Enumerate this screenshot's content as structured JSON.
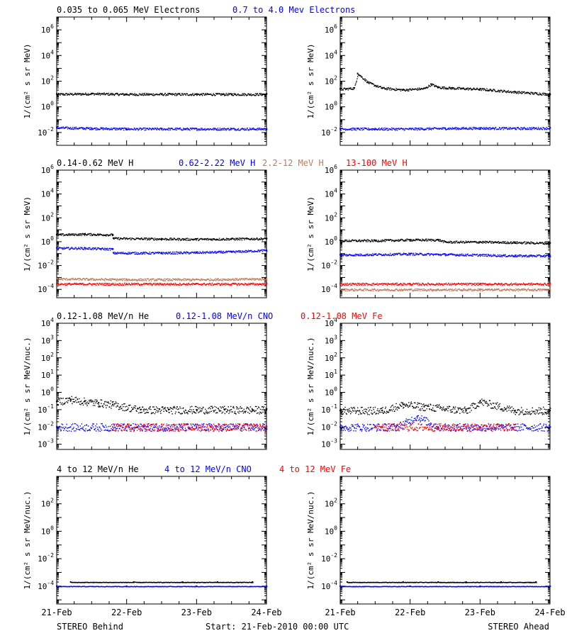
{
  "colors": {
    "black": "#000000",
    "blue": "#0000ff",
    "tan": "#c0785a",
    "red": "#ff0000"
  },
  "chart_data": [
    {
      "type": "scatter",
      "panel": "electrons-behind",
      "log_y": true,
      "ylim": [
        0.001,
        10000000
      ],
      "ylabel": "1/(cm² s sr MeV)",
      "yticks": [
        "10^-2",
        "10^0",
        "10^2",
        "10^4",
        "10^6"
      ],
      "series": [
        {
          "name": "0.035 to 0.065 MeV Electrons",
          "color": "#000000",
          "x": [
            0,
            0.5,
            1,
            1.5,
            2,
            2.5,
            3
          ],
          "y": [
            10,
            11,
            10,
            10,
            10,
            10,
            10
          ]
        },
        {
          "name": "0.7 to 4.0 Mev Electrons",
          "color": "#0000ff",
          "x": [
            0,
            0.5,
            1,
            1.5,
            2,
            2.5,
            3
          ],
          "y": [
            0.025,
            0.022,
            0.02,
            0.02,
            0.02,
            0.02,
            0.02
          ]
        }
      ]
    },
    {
      "type": "scatter",
      "panel": "electrons-ahead",
      "log_y": true,
      "ylim": [
        0.001,
        10000000
      ],
      "ylabel": "1/(cm² s sr MeV)",
      "yticks": [
        "10^-2",
        "10^0",
        "10^2",
        "10^4",
        "10^6"
      ],
      "series": [
        {
          "name": "0.035 to 0.065 MeV Electrons",
          "color": "#000000",
          "x": [
            0,
            0.2,
            0.25,
            0.4,
            0.6,
            0.9,
            1.2,
            1.3,
            1.4,
            1.6,
            2.0,
            2.5,
            3
          ],
          "y": [
            25,
            30,
            400,
            80,
            30,
            22,
            28,
            60,
            35,
            30,
            25,
            15,
            10
          ]
        },
        {
          "name": "0.7 to 4.0 Mev Electrons",
          "color": "#0000ff",
          "x": [
            0,
            0.5,
            1,
            1.5,
            2,
            2.5,
            3
          ],
          "y": [
            0.02,
            0.02,
            0.02,
            0.022,
            0.023,
            0.022,
            0.023
          ]
        }
      ]
    },
    {
      "type": "scatter",
      "panel": "protons-behind",
      "log_y": true,
      "ylim": [
        2e-05,
        1000000
      ],
      "ylabel": "1/(cm² s sr MeV)",
      "yticks": [
        "10^-4",
        "10^-2",
        "10^0",
        "10^2",
        "10^4",
        "10^6"
      ],
      "series": [
        {
          "name": "0.14-0.62 MeV H",
          "color": "#000000",
          "x": [
            0,
            0.4,
            0.8,
            0.81,
            1.5,
            2,
            2.5,
            3
          ],
          "y": [
            4,
            4.5,
            4,
            2,
            1.8,
            1.7,
            1.8,
            1.9
          ]
        },
        {
          "name": "0.62-2.22 MeV H",
          "color": "#0000ff",
          "x": [
            0,
            0.4,
            0.8,
            0.81,
            1.5,
            2,
            2.5,
            3
          ],
          "y": [
            0.3,
            0.3,
            0.25,
            0.12,
            0.12,
            0.13,
            0.15,
            0.2
          ]
        },
        {
          "name": "2.2-12 MeV H",
          "color": "#c0785a",
          "x": [
            0,
            1,
            2,
            3
          ],
          "y": [
            0.0008,
            0.0007,
            0.0007,
            0.0008
          ]
        },
        {
          "name": "13-100 MeV H",
          "color": "#ff0000",
          "x": [
            0,
            1,
            2,
            3
          ],
          "y": [
            0.0003,
            0.0003,
            0.0003,
            0.0003
          ]
        }
      ]
    },
    {
      "type": "scatter",
      "panel": "protons-ahead",
      "log_y": true,
      "ylim": [
        2e-05,
        1000000
      ],
      "ylabel": "1/(cm² s sr MeV)",
      "yticks": [
        "10^-4",
        "10^-2",
        "10^0",
        "10^2",
        "10^4",
        "10^6"
      ],
      "series": [
        {
          "name": "0.14-0.62 MeV H",
          "color": "#000000",
          "x": [
            0,
            0.5,
            1,
            1.4,
            1.5,
            2,
            2.5,
            3
          ],
          "y": [
            1.3,
            1.3,
            1.5,
            1.5,
            1.0,
            1.0,
            0.9,
            0.8
          ]
        },
        {
          "name": "0.62-2.22 MeV H",
          "color": "#0000ff",
          "x": [
            0,
            0.5,
            1,
            1.5,
            2,
            2.5,
            3
          ],
          "y": [
            0.08,
            0.09,
            0.1,
            0.09,
            0.08,
            0.07,
            0.07
          ]
        },
        {
          "name": "2.2-12 MeV H",
          "color": "#c0785a",
          "x": [
            0,
            1,
            2,
            3
          ],
          "y": [
            0.0001,
            0.0001,
            0.0001,
            0.0001
          ]
        },
        {
          "name": "13-100 MeV H",
          "color": "#ff0000",
          "x": [
            0,
            1,
            2,
            3
          ],
          "y": [
            0.0003,
            0.0003,
            0.0003,
            0.0003
          ]
        }
      ]
    },
    {
      "type": "scatter",
      "panel": "heavy-low-behind",
      "log_y": true,
      "ylim": [
        0.0005,
        10000
      ],
      "ylabel": "1/(cm² s sr MeV/nuc.)",
      "yticks": [
        "10^-3",
        "10^-2",
        "10^-1",
        "10^0",
        "10^1",
        "10^2",
        "10^3",
        "10^4"
      ],
      "series": [
        {
          "name": "0.12-1.08 MeV/n He",
          "color": "#000000",
          "x": [
            0,
            0.2,
            0.4,
            0.6,
            0.8,
            1.2,
            1.6,
            2,
            2.4,
            2.8,
            3
          ],
          "y": [
            0.3,
            0.4,
            0.3,
            0.25,
            0.2,
            0.1,
            0.1,
            0.1,
            0.1,
            0.1,
            0.1
          ]
        },
        {
          "name": "0.12-1.08 MeV/n CNO",
          "color": "#0000ff",
          "x": [
            0,
            1,
            2,
            3
          ],
          "y": [
            0.01,
            0.01,
            0.01,
            0.01
          ]
        },
        {
          "name": "0.12-1.08 MeV Fe",
          "color": "#ff0000",
          "x": [
            0.8,
            1.5,
            2.2,
            3
          ],
          "y": [
            0.01,
            0.01,
            0.01,
            0.01
          ]
        }
      ]
    },
    {
      "type": "scatter",
      "panel": "heavy-low-ahead",
      "log_y": true,
      "ylim": [
        0.0005,
        10000
      ],
      "ylabel": "1/(cm² s sr MeV/nuc.)",
      "yticks": [
        "10^-3",
        "10^-2",
        "10^-1",
        "10^0",
        "10^1",
        "10^2",
        "10^3",
        "10^4"
      ],
      "series": [
        {
          "name": "0.12-1.08 MeV/n He",
          "color": "#000000",
          "x": [
            0,
            0.6,
            0.9,
            1.2,
            1.8,
            2.0,
            2.5,
            3
          ],
          "y": [
            0.09,
            0.09,
            0.2,
            0.15,
            0.09,
            0.3,
            0.09,
            0.09
          ]
        },
        {
          "name": "0.12-1.08 MeV/n CNO",
          "color": "#0000ff",
          "x": [
            0,
            0.8,
            1.1,
            1.4,
            2,
            3
          ],
          "y": [
            0.01,
            0.01,
            0.04,
            0.01,
            0.01,
            0.01
          ]
        },
        {
          "name": "0.12-1.08 MeV Fe",
          "color": "#ff0000",
          "x": [
            0.5,
            1.5,
            2.5
          ],
          "y": [
            0.01,
            0.01,
            0.01
          ]
        }
      ]
    },
    {
      "type": "scatter",
      "panel": "heavy-high-behind",
      "log_y": true,
      "ylim": [
        5e-06,
        10000
      ],
      "ylabel": "1/(cm² s sr MeV/nuc.)",
      "yticks": [
        "10^-4",
        "10^-2",
        "10^0",
        "10^2"
      ],
      "series": [
        {
          "name": "4 to 12 MeV/n He",
          "color": "#000000",
          "x": [
            0.2,
            1.1,
            1.8,
            2.3,
            2.8
          ],
          "y": [
            0.0002,
            0.0002,
            0.0002,
            0.0002,
            0.0002
          ]
        },
        {
          "name": "4 to 12 MeV/n CNO",
          "color": "#0000ff",
          "x": [
            0,
            1,
            2,
            3
          ],
          "y": [
            0.0001,
            0.0001,
            0.0001,
            0.0001
          ]
        },
        {
          "name": "4 to 12 MeV Fe",
          "color": "#ff0000",
          "x": [],
          "y": []
        }
      ]
    },
    {
      "type": "scatter",
      "panel": "heavy-high-ahead",
      "log_y": true,
      "ylim": [
        5e-06,
        10000
      ],
      "ylabel": "1/(cm² s sr MeV/nuc.)",
      "yticks": [
        "10^-4",
        "10^-2",
        "10^0",
        "10^2"
      ],
      "series": [
        {
          "name": "4 to 12 MeV/n He",
          "color": "#000000",
          "x": [
            0.1,
            0.9,
            1.4,
            1.8,
            2.3,
            2.8
          ],
          "y": [
            0.0002,
            0.0002,
            0.0002,
            0.0002,
            0.0002,
            0.0002
          ]
        },
        {
          "name": "4 to 12 MeV/n CNO",
          "color": "#0000ff",
          "x": [
            0,
            1,
            2,
            3
          ],
          "y": [
            0.0001,
            0.0001,
            0.0001,
            0.0001
          ]
        },
        {
          "name": "4 to 12 MeV Fe",
          "color": "#ff0000",
          "x": [],
          "y": []
        }
      ]
    }
  ],
  "rows": [
    {
      "titles": [
        {
          "text": "0.035 to 0.065 MeV Electrons",
          "color": "#000000"
        },
        {
          "text": "0.7 to 4.0 Mev Electrons",
          "color": "#0000ff"
        }
      ]
    },
    {
      "titles": [
        {
          "text": "0.14-0.62 MeV H",
          "color": "#000000"
        },
        {
          "text": "0.62-2.22 MeV H",
          "color": "#0000ff"
        },
        {
          "text": "2.2-12 MeV H",
          "color": "#c0785a"
        },
        {
          "text": "13-100 MeV H",
          "color": "#ff0000"
        }
      ]
    },
    {
      "titles": [
        {
          "text": "0.12-1.08 MeV/n He",
          "color": "#000000"
        },
        {
          "text": "0.12-1.08 MeV/n CNO",
          "color": "#0000ff"
        },
        {
          "text": "0.12-1.08 MeV Fe",
          "color": "#ff0000"
        }
      ]
    },
    {
      "titles": [
        {
          "text": "4 to 12 MeV/n He",
          "color": "#000000"
        },
        {
          "text": "4 to 12 MeV/n CNO",
          "color": "#0000ff"
        },
        {
          "text": "4 to 12 MeV Fe",
          "color": "#ff0000"
        }
      ]
    }
  ],
  "x_axis": {
    "ticks": [
      "21-Feb",
      "22-Feb",
      "23-Feb",
      "24-Feb"
    ]
  },
  "footer": {
    "left": "STEREO Behind",
    "center": "Start: 21-Feb-2010 00:00 UTC",
    "right": "STEREO Ahead"
  }
}
